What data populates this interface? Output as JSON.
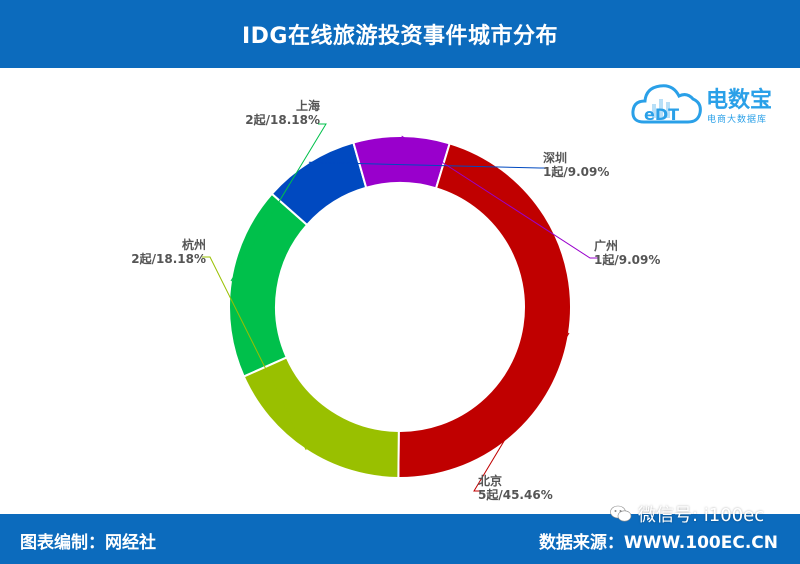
{
  "title": "IDG在线旅游投资事件城市分布",
  "footer": {
    "left": "图表编制：网经社",
    "right": "数据来源：WWW.100EC.CN"
  },
  "watermark": {
    "wechat": "微信号: i100ec"
  },
  "logo": {
    "text": "电数宝",
    "subtitle": "电商大数据库",
    "mark": "eDT"
  },
  "colors": {
    "header": "#0c6bbd",
    "上海": "#00c04b",
    "深圳": "#0049c0",
    "广州": "#9900cc",
    "北京": "#c00000",
    "杭州": "#99c000"
  },
  "chart_data": {
    "type": "pie",
    "style": "donut",
    "categories": [
      "上海",
      "深圳",
      "广州",
      "北京",
      "杭州"
    ],
    "counts": [
      2,
      1,
      1,
      5,
      2
    ],
    "values": [
      18.18,
      9.09,
      9.09,
      45.46,
      18.18
    ],
    "labels": [
      {
        "name": "上海",
        "value": "2起/18.18%"
      },
      {
        "name": "深圳",
        "value": "1起/9.09%"
      },
      {
        "name": "广州",
        "value": "1起/9.09%"
      },
      {
        "name": "北京",
        "value": "5起/45.46%"
      },
      {
        "name": "杭州",
        "value": "2起/18.18%"
      }
    ]
  }
}
